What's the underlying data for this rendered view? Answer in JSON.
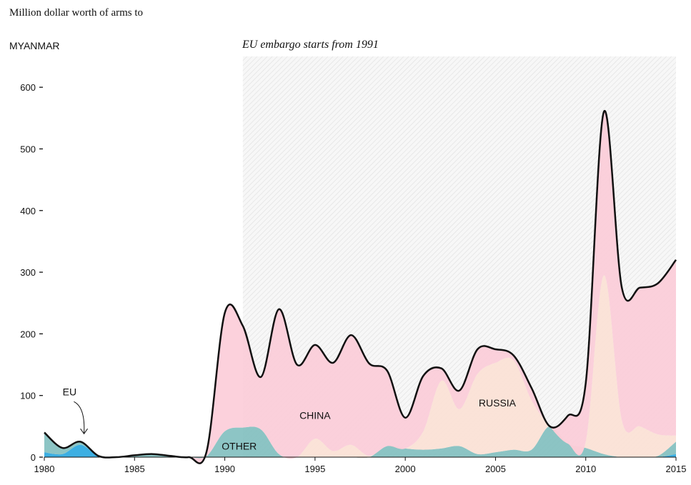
{
  "chart_data": {
    "type": "area",
    "title": "Million dollar worth of arms to",
    "country": "MYANMAR",
    "annotation": "EU embargo starts from 1991",
    "embargo_start": 1991,
    "x": [
      1980,
      1981,
      1982,
      1983,
      1984,
      1985,
      1986,
      1987,
      1988,
      1989,
      1990,
      1991,
      1992,
      1993,
      1994,
      1995,
      1996,
      1997,
      1998,
      1999,
      2000,
      2001,
      2002,
      2003,
      2004,
      2005,
      2006,
      2007,
      2008,
      2009,
      2010,
      2011,
      2012,
      2013,
      2014,
      2015
    ],
    "series": [
      {
        "name": "EU",
        "color": "#22a4de",
        "values": [
          8,
          5,
          20,
          2,
          0,
          0,
          0,
          0,
          0,
          0,
          0,
          0,
          0,
          0,
          0,
          0,
          0,
          0,
          0,
          0,
          0,
          0,
          0,
          0,
          0,
          0,
          0,
          0,
          0,
          0,
          0,
          0,
          0,
          0,
          0,
          5
        ]
      },
      {
        "name": "OTHER",
        "color": "#7dbdbd",
        "values": [
          32,
          10,
          5,
          0,
          0,
          3,
          5,
          2,
          0,
          2,
          42,
          48,
          45,
          5,
          0,
          0,
          0,
          0,
          0,
          18,
          14,
          12,
          14,
          18,
          5,
          8,
          12,
          12,
          50,
          22,
          15,
          5,
          0,
          0,
          2,
          20
        ]
      },
      {
        "name": "RUSSIA",
        "color": "#fce0d4",
        "values": [
          0,
          0,
          0,
          0,
          0,
          0,
          0,
          0,
          0,
          0,
          0,
          0,
          0,
          0,
          0,
          30,
          10,
          20,
          2,
          0,
          0,
          30,
          110,
          60,
          130,
          145,
          145,
          80,
          0,
          0,
          10,
          290,
          60,
          50,
          35,
          10
        ]
      },
      {
        "name": "CHINA",
        "color": "#fccbd7",
        "values": [
          0,
          0,
          0,
          0,
          0,
          0,
          0,
          0,
          0,
          8,
          192,
          165,
          85,
          235,
          150,
          152,
          143,
          178,
          150,
          122,
          50,
          90,
          20,
          30,
          40,
          22,
          8,
          20,
          0,
          45,
          95,
          265,
          215,
          225,
          245,
          285
        ]
      }
    ],
    "total": [
      40,
      15,
      25,
      2,
      0,
      3,
      5,
      2,
      0,
      10,
      234,
      213,
      130,
      240,
      150,
      182,
      153,
      198,
      152,
      140,
      64,
      132,
      144,
      108,
      175,
      175,
      165,
      112,
      50,
      67,
      120,
      560,
      275,
      275,
      282,
      320
    ],
    "xlim": [
      1980,
      2015
    ],
    "ylim": [
      0,
      650
    ],
    "x_ticks": [
      1980,
      1985,
      1990,
      1995,
      2000,
      2005,
      2010,
      2015
    ],
    "y_ticks": [
      0,
      100,
      200,
      300,
      400,
      500,
      600
    ],
    "annotations": [
      {
        "text": "EU",
        "x": 1981.4,
        "y": 100
      },
      {
        "text": "CHINA",
        "x": 1995,
        "y": 62
      },
      {
        "text": "RUSSIA",
        "x": 2005.1,
        "y": 82
      },
      {
        "text": "OTHER",
        "x": 1990.8,
        "y": 12
      }
    ]
  }
}
